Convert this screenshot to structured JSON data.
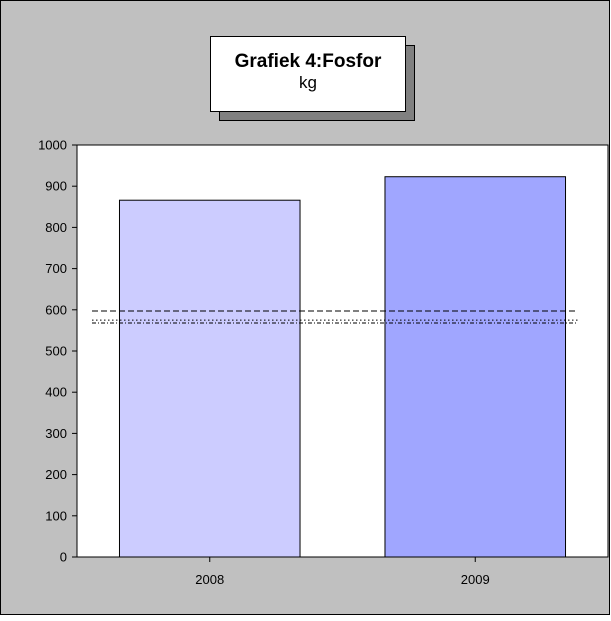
{
  "chart_data": {
    "type": "bar",
    "title": "Grafiek 4:Fosfor",
    "subtitle": "kg",
    "categories": [
      "2008",
      "2009"
    ],
    "values": [
      866,
      923
    ],
    "bar_colors": [
      "#ccccff",
      "#a0a6ff"
    ],
    "ylim": [
      0,
      1000
    ],
    "yticks": [
      0,
      100,
      200,
      300,
      400,
      500,
      600,
      700,
      800,
      900,
      1000
    ],
    "reference_lines": [
      {
        "style": "dashed",
        "value": 597
      },
      {
        "style": "dotted",
        "value": 575
      },
      {
        "style": "dash-dot",
        "value": 568
      }
    ],
    "background_color": "#c0c0c0",
    "plot_background_color": "#ffffff",
    "grid": false,
    "legend": "none"
  }
}
